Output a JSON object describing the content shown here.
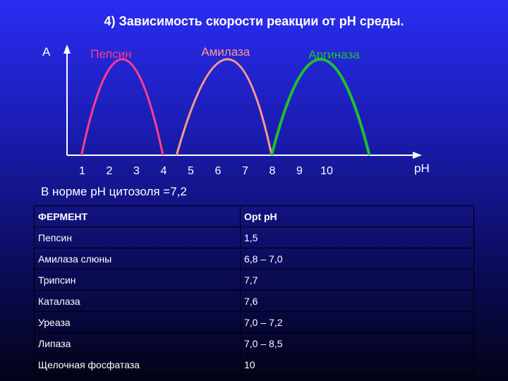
{
  "title": "4) Зависимость скорости реакции от рН среды.",
  "chart_data": {
    "type": "line",
    "ylabel": "А",
    "xlabel": "рН",
    "x_ticks": [
      "1",
      "2",
      "3",
      "4",
      "5",
      "6",
      "7",
      "8",
      "9",
      "10"
    ],
    "series": [
      {
        "name": "Пепсин",
        "color": "#ff3d8a",
        "start": 1,
        "peak": 2.5,
        "end": 4,
        "width": 3
      },
      {
        "name": "Амилаза",
        "color": "#ff9a8a",
        "start": 4.5,
        "peak": 6.5,
        "end": 8,
        "width": 3
      },
      {
        "name": "Аргиназа",
        "color": "#1fbf2f",
        "start": 8,
        "peak": 9.8,
        "end": 11.6,
        "width": 4
      }
    ]
  },
  "note": "В норме рН цитозоля =7,2",
  "table": {
    "headers": [
      "ФЕРМЕНТ",
      "Opt pH"
    ],
    "rows": [
      [
        "Пепсин",
        "1,5"
      ],
      [
        "Амилаза слюны",
        "6,8 – 7,0"
      ],
      [
        "Трипсин",
        "7,7"
      ],
      [
        "Каталаза",
        "7,6"
      ],
      [
        "Уреаза",
        "7,0 – 7,2"
      ],
      [
        "Липаза",
        "7,0 – 8,5"
      ],
      [
        "Щелочная фосфатаза",
        "10"
      ]
    ]
  }
}
